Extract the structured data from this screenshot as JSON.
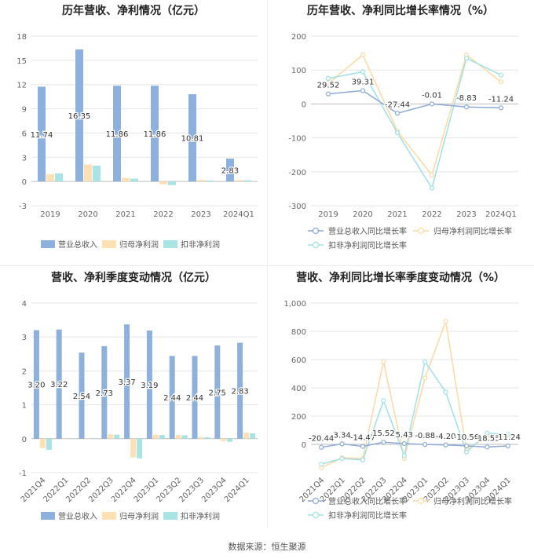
{
  "source": "数据来源：恒生聚源",
  "colors": {
    "revenue": "#8eb0dd",
    "parent": "#fde0b4",
    "deducted": "#a8e4e4",
    "axis_text": "#666666",
    "grid": "#e6e6e6",
    "title": "#222222"
  },
  "chart_data": [
    {
      "type": "bar",
      "title": "历年营收、净利情况（亿元）",
      "categories": [
        "2019",
        "2020",
        "2021",
        "2022",
        "2023",
        "2024Q1"
      ],
      "ylim": [
        -3,
        18
      ],
      "yticks": [
        -3,
        0,
        3,
        6,
        9,
        12,
        15,
        18
      ],
      "legend_position": "bottom",
      "series": [
        {
          "name": "营业总收入",
          "values": [
            11.74,
            16.35,
            11.86,
            11.86,
            10.81,
            2.83
          ],
          "labels": [
            "11.74",
            "16.35",
            "11.86",
            "11.86",
            "10.81",
            "2.83"
          ]
        },
        {
          "name": "归母净利润",
          "values": [
            0.9,
            2.1,
            0.45,
            -0.35,
            0.2,
            0.18
          ]
        },
        {
          "name": "扣非净利润",
          "values": [
            1.0,
            1.95,
            0.35,
            -0.45,
            0.12,
            0.15
          ]
        }
      ]
    },
    {
      "type": "line",
      "title": "历年营收、净利同比增长率情况（%）",
      "categories": [
        "2019",
        "2020",
        "2021",
        "2022",
        "2023",
        "2024Q1"
      ],
      "ylim": [
        -300,
        200
      ],
      "yticks": [
        -300,
        -200,
        -100,
        0,
        100,
        200
      ],
      "legend_position": "bottom",
      "series": [
        {
          "name": "营业总收入同比增长率",
          "values": [
            29.52,
            39.31,
            -27.44,
            -0.01,
            -8.83,
            -11.24
          ],
          "labels": [
            "29.52",
            "39.31",
            "-27.44",
            "-0.01",
            "-8.83",
            "-11.24"
          ]
        },
        {
          "name": "归母净利润同比增长率",
          "values": [
            60,
            145,
            -80,
            -210,
            145,
            65
          ]
        },
        {
          "name": "扣非净利润同比增长率",
          "values": [
            75,
            95,
            -85,
            -248,
            135,
            85
          ]
        }
      ]
    },
    {
      "type": "bar",
      "title": "营收、净利季度变动情况（亿元）",
      "categories": [
        "2021Q4",
        "2022Q1",
        "2022Q2",
        "2022Q3",
        "2022Q4",
        "2023Q1",
        "2023Q2",
        "2023Q3",
        "2023Q4",
        "2024Q1"
      ],
      "ylim": [
        -1,
        4
      ],
      "yticks": [
        -1,
        0,
        1,
        2,
        3,
        4
      ],
      "legend_position": "bottom",
      "series": [
        {
          "name": "营业总收入",
          "values": [
            3.2,
            3.22,
            2.54,
            2.73,
            3.37,
            3.19,
            2.44,
            2.44,
            2.75,
            2.83
          ],
          "labels": [
            "3.20",
            "3.22",
            "2.54",
            "2.73",
            "3.37",
            "3.19",
            "2.44",
            "2.44",
            "2.75",
            "2.83"
          ]
        },
        {
          "name": "归母净利润",
          "values": [
            -0.28,
            0.02,
            0.01,
            0.13,
            -0.55,
            0.12,
            0.11,
            0.05,
            -0.07,
            0.18
          ]
        },
        {
          "name": "扣非净利润",
          "values": [
            -0.33,
            0.01,
            0.0,
            0.12,
            -0.58,
            0.11,
            0.1,
            0.04,
            -0.09,
            0.16
          ]
        }
      ]
    },
    {
      "type": "line",
      "title": "营收、净利同比增长率季度变动情况（%）",
      "categories": [
        "2021Q4",
        "2022Q1",
        "2022Q2",
        "2022Q3",
        "2022Q4",
        "2023Q1",
        "2023Q2",
        "2023Q3",
        "2023Q4",
        "2024Q1"
      ],
      "ylim": [
        -200,
        1000
      ],
      "yticks": [
        0,
        200,
        400,
        600,
        800,
        1000
      ],
      "ytick_labels": [
        "0",
        "200",
        "400",
        "600",
        "800",
        "1,000"
      ],
      "legend_position": "bottom",
      "series": [
        {
          "name": "营业总收入同比增长率",
          "values": [
            -20.44,
            3.34,
            -14.47,
            15.52,
            5.43,
            -0.88,
            -4.2,
            -10.56,
            -18.53,
            -11.24
          ],
          "labels": [
            "-20.44",
            "3.34",
            "-14.47",
            "15.52",
            "5.43",
            "-0.88",
            "-4.20",
            "-10.56",
            "-18.53",
            "-11.24"
          ]
        },
        {
          "name": "归母净利润同比增长率",
          "values": [
            -165,
            -95,
            -100,
            585,
            -100,
            470,
            870,
            -40,
            60,
            55
          ]
        },
        {
          "name": "扣非净利润同比增长率",
          "values": [
            -140,
            -100,
            -110,
            310,
            -80,
            585,
            370,
            -55,
            80,
            70
          ]
        }
      ]
    }
  ]
}
